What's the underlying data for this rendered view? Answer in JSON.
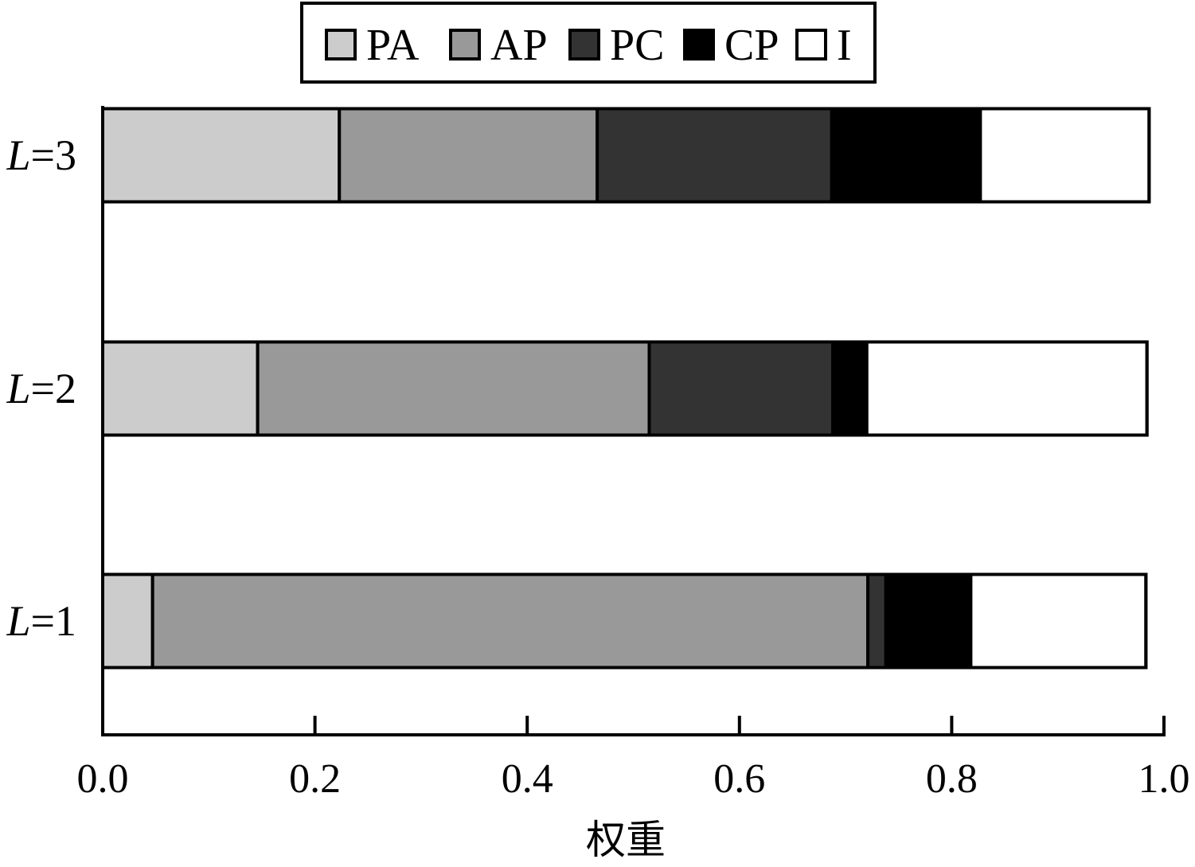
{
  "chart_data": {
    "type": "bar",
    "orientation": "horizontal",
    "stacked": true,
    "title": "",
    "xlabel": "权重",
    "ylabel": "",
    "xlim": [
      0,
      1.0
    ],
    "x_ticks": [
      "0.0",
      "0.2",
      "0.4",
      "0.6",
      "0.8",
      "1.0"
    ],
    "x_tick_values": [
      0,
      0.2,
      0.4,
      0.6,
      0.8,
      1.0
    ],
    "grid": false,
    "legend_position": "top-center",
    "categories": [
      {
        "label_var": "L",
        "label_rest": "=1"
      },
      {
        "label_var": "L",
        "label_rest": "=2"
      },
      {
        "label_var": "L",
        "label_rest": "=3"
      }
    ],
    "series": [
      {
        "name": "PA",
        "color": "#cccccc",
        "values": [
          0.047,
          0.146,
          0.223
        ]
      },
      {
        "name": "AP",
        "color": "#999999",
        "values": [
          0.674,
          0.369,
          0.243
        ]
      },
      {
        "name": "PC",
        "color": "#333333",
        "values": [
          0.017,
          0.173,
          0.221
        ]
      },
      {
        "name": "CP",
        "color": "#000000",
        "values": [
          0.08,
          0.032,
          0.14
        ]
      },
      {
        "name": "I",
        "color": "#ffffff",
        "values": [
          0.165,
          0.264,
          0.159
        ]
      }
    ]
  }
}
